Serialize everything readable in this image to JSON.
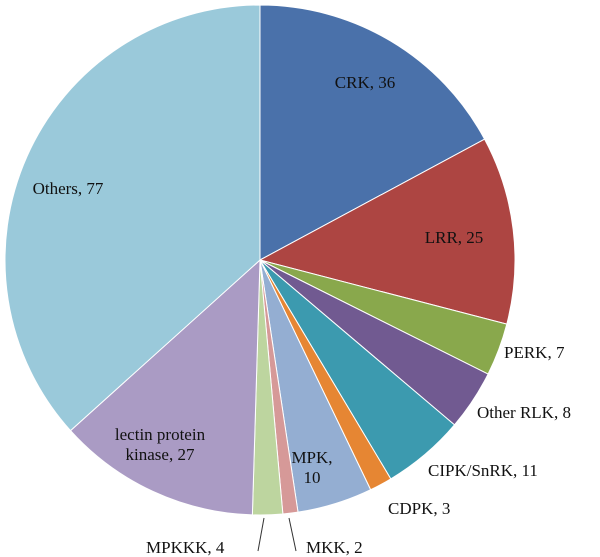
{
  "chart_data": {
    "type": "pie",
    "slices": [
      {
        "label": "CRK, 36",
        "name": "CRK",
        "value": 36,
        "color": "#4a71aa"
      },
      {
        "label": "LRR, 25",
        "name": "LRR",
        "value": 25,
        "color": "#ad4542"
      },
      {
        "label": "PERK, 7",
        "name": "PERK",
        "value": 7,
        "color": "#89a84c"
      },
      {
        "label": "Other RLK, 8",
        "name": "Other RLK",
        "value": 8,
        "color": "#715a91"
      },
      {
        "label": "CIPK/SnRK, 11",
        "name": "CIPK/SnRK",
        "value": 11,
        "color": "#3c9aaf"
      },
      {
        "label": "CDPK, 3",
        "name": "CDPK",
        "value": 3,
        "color": "#e68633"
      },
      {
        "label": "MPK,\n10",
        "name": "MPK",
        "value": 10,
        "color": "#94aed2"
      },
      {
        "label": "MKK, 2",
        "name": "MKK",
        "value": 2,
        "color": "#d69998"
      },
      {
        "label": "MPKKK, 4",
        "name": "MPKKK",
        "value": 4,
        "color": "#bdd59f"
      },
      {
        "label": "lectin protein\nkinase, 27",
        "name": "lectin protein kinase",
        "value": 27,
        "color": "#aa9bc4"
      },
      {
        "label": "Others, 77",
        "name": "Others",
        "value": 77,
        "color": "#9ac9da"
      }
    ]
  }
}
